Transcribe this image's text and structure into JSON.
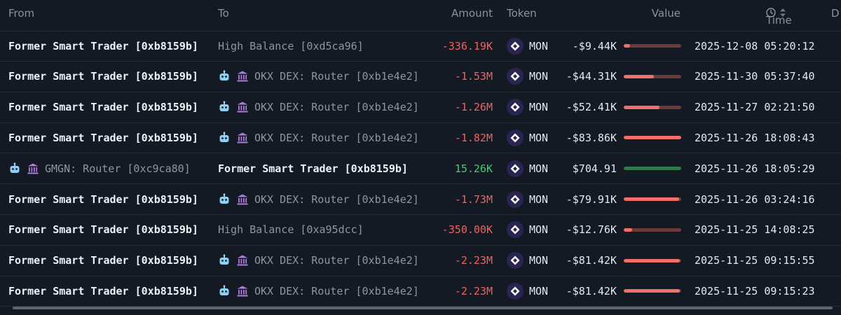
{
  "headers": {
    "from": "From",
    "to": "To",
    "amount": "Amount",
    "token": "Token",
    "value": "Value",
    "time": "Time",
    "d": "D"
  },
  "icons": {
    "clock": "clock-icon",
    "sort": "sort-arrows-icon",
    "bot": "bot-icon",
    "bank": "bank-icon",
    "token": "mon-token-icon"
  },
  "colors": {
    "negative": "#f1625e",
    "positive": "#3ecf75",
    "bar_negative": "#f2706c",
    "bar_positive": "#2f7a48"
  },
  "rows": [
    {
      "from": "Former Smart Trader [0xb8159b]",
      "from_style": "bold",
      "from_icons": false,
      "to": "High Balance [0xd5ca96]",
      "to_style": "dim",
      "to_icons": false,
      "amount": "-336.19K",
      "amount_sign": "neg",
      "token": "MON",
      "value": "-$9.44K",
      "level": 0.11,
      "time": "2025-12-08 05:20:12"
    },
    {
      "from": "Former Smart Trader [0xb8159b]",
      "from_style": "bold",
      "from_icons": false,
      "to": "OKX DEX: Router [0xb1e4e2]",
      "to_style": "dim",
      "to_icons": true,
      "amount": "-1.53M",
      "amount_sign": "neg",
      "token": "MON",
      "value": "-$44.31K",
      "level": 0.53,
      "time": "2025-11-30 05:37:40"
    },
    {
      "from": "Former Smart Trader [0xb8159b]",
      "from_style": "bold",
      "from_icons": false,
      "to": "OKX DEX: Router [0xb1e4e2]",
      "to_style": "dim",
      "to_icons": true,
      "amount": "-1.26M",
      "amount_sign": "neg",
      "token": "MON",
      "value": "-$52.41K",
      "level": 0.62,
      "time": "2025-11-27 02:21:50"
    },
    {
      "from": "Former Smart Trader [0xb8159b]",
      "from_style": "bold",
      "from_icons": false,
      "to": "OKX DEX: Router [0xb1e4e2]",
      "to_style": "dim",
      "to_icons": true,
      "amount": "-1.82M",
      "amount_sign": "neg",
      "token": "MON",
      "value": "-$83.86K",
      "level": 1.0,
      "time": "2025-11-26 18:08:43"
    },
    {
      "from": "GMGN: Router [0xc9ca80]",
      "from_style": "dim",
      "from_icons": true,
      "to": "Former Smart Trader [0xb8159b]",
      "to_style": "bold",
      "to_icons": false,
      "amount": "15.26K",
      "amount_sign": "pos",
      "token": "MON",
      "value": "$704.91",
      "level": 1.0,
      "time": "2025-11-26 18:05:29"
    },
    {
      "from": "Former Smart Trader [0xb8159b]",
      "from_style": "bold",
      "from_icons": false,
      "to": "OKX DEX: Router [0xb1e4e2]",
      "to_style": "dim",
      "to_icons": true,
      "amount": "-1.73M",
      "amount_sign": "neg",
      "token": "MON",
      "value": "-$79.91K",
      "level": 0.96,
      "time": "2025-11-26 03:24:16"
    },
    {
      "from": "Former Smart Trader [0xb8159b]",
      "from_style": "bold",
      "from_icons": false,
      "to": "High Balance [0xa95dcc]",
      "to_style": "dim",
      "to_icons": false,
      "amount": "-350.00K",
      "amount_sign": "neg",
      "token": "MON",
      "value": "-$12.76K",
      "level": 0.15,
      "time": "2025-11-25 14:08:25"
    },
    {
      "from": "Former Smart Trader [0xb8159b]",
      "from_style": "bold",
      "from_icons": false,
      "to": "OKX DEX: Router [0xb1e4e2]",
      "to_style": "dim",
      "to_icons": true,
      "amount": "-2.23M",
      "amount_sign": "neg",
      "token": "MON",
      "value": "-$81.42K",
      "level": 0.97,
      "time": "2025-11-25 09:15:55"
    },
    {
      "from": "Former Smart Trader [0xb8159b]",
      "from_style": "bold",
      "from_icons": false,
      "to": "OKX DEX: Router [0xb1e4e2]",
      "to_style": "dim",
      "to_icons": true,
      "amount": "-2.23M",
      "amount_sign": "neg",
      "token": "MON",
      "value": "-$81.42K",
      "level": 0.97,
      "time": "2025-11-25 09:15:23"
    }
  ]
}
